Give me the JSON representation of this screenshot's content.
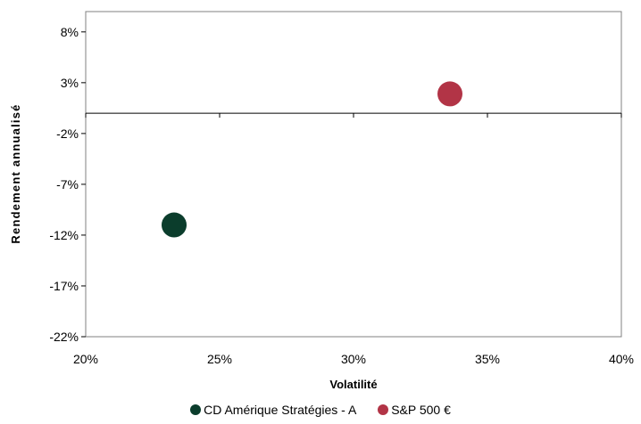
{
  "chart_data": {
    "type": "scatter",
    "title": "",
    "xlabel": "Volatilité",
    "ylabel": "Rendement annualisé",
    "xlim": [
      0.2,
      0.4
    ],
    "ylim": [
      -0.22,
      0.1
    ],
    "x_ticks": [
      0.2,
      0.25,
      0.3,
      0.35,
      0.4
    ],
    "x_tick_labels": [
      "20%",
      "25%",
      "30%",
      "35%",
      "40%"
    ],
    "y_ticks": [
      0.08,
      0.03,
      -0.02,
      -0.07,
      -0.12,
      -0.17,
      -0.22
    ],
    "y_tick_labels": [
      "8%",
      "3%",
      "-2%",
      "-7%",
      "-12%",
      "-17%",
      "-22%"
    ],
    "grid": false,
    "legend_position": "bottom",
    "series": [
      {
        "name": "CD Amérique Stratégies - A",
        "color": "#0b3d2c",
        "points": [
          {
            "x": 0.233,
            "y": -0.11
          }
        ]
      },
      {
        "name": "S&P 500 €",
        "color": "#b23446",
        "points": [
          {
            "x": 0.336,
            "y": 0.019
          }
        ]
      }
    ]
  }
}
